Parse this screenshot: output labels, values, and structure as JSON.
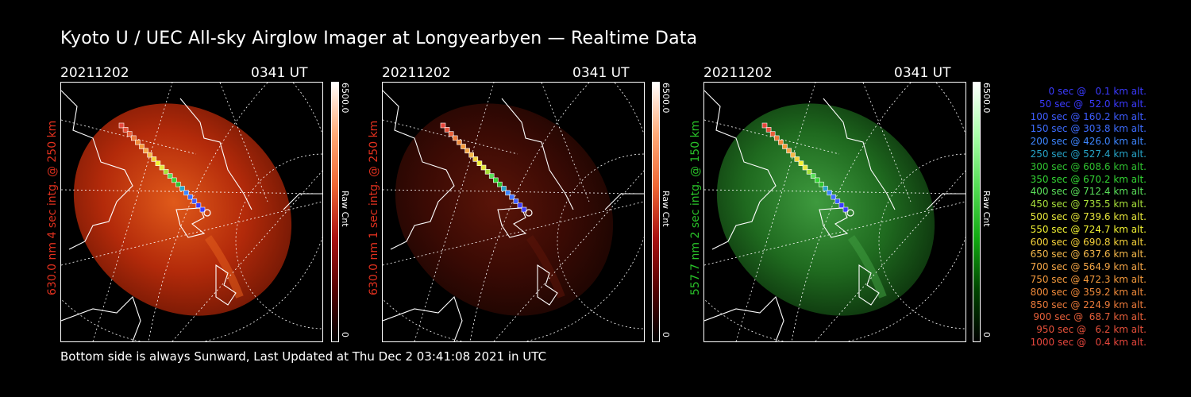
{
  "title": "Kyoto U / UEC All-sky Airglow Imager at Longyearbyen — Realtime Data",
  "footer": "Bottom side is always Sunward, Last Updated at Thu Dec  2 03:41:08 2021 in UTC",
  "panels": [
    {
      "date": "20211202",
      "time": "0341 UT",
      "ylabel": "630.0 nm  4 sec intg. @ 250 km",
      "ylabel_color": "#e0301e",
      "cbar_max": "6500.0",
      "cbar_min": "0",
      "cbar_unit": "Raw Cnt",
      "tint": "red",
      "intensity": "bright"
    },
    {
      "date": "20211202",
      "time": "0341 UT",
      "ylabel": "630.0 nm  1 sec intg. @ 250 km",
      "ylabel_color": "#e0301e",
      "cbar_max": "6500.0",
      "cbar_min": "0",
      "cbar_unit": "Raw Cnt",
      "tint": "red",
      "intensity": "dim"
    },
    {
      "date": "20211202",
      "time": "0341 UT",
      "ylabel": "557.7 nm  2 sec intg. @ 150 km",
      "ylabel_color": "#29c229",
      "cbar_max": "6500.0",
      "cbar_min": "0",
      "cbar_unit": "Raw Cnt",
      "tint": "green",
      "intensity": "medium"
    }
  ],
  "legend": [
    {
      "text": "0 sec @   0.1 km alt.",
      "color": "#3a3aff"
    },
    {
      "text": "50 sec @  52.0 km alt.",
      "color": "#3a3aff"
    },
    {
      "text": "100 sec @ 160.2 km alt.",
      "color": "#3d5cff"
    },
    {
      "text": "150 sec @ 303.8 km alt.",
      "color": "#3d6dff"
    },
    {
      "text": "200 sec @ 426.0 km alt.",
      "color": "#3d86ff"
    },
    {
      "text": "250 sec @ 527.4 km alt.",
      "color": "#26a4c8"
    },
    {
      "text": "300 sec @ 608.6 km alt.",
      "color": "#2fc12f"
    },
    {
      "text": "350 sec @ 670.2 km alt.",
      "color": "#33d633"
    },
    {
      "text": "400 sec @ 712.4 km alt.",
      "color": "#5ae05a"
    },
    {
      "text": "450 sec @ 735.5 km alt.",
      "color": "#a8e03a"
    },
    {
      "text": "500 sec @ 739.6 km alt.",
      "color": "#e6e63a"
    },
    {
      "text": "550 sec @ 724.7 km alt.",
      "color": "#f2f232"
    },
    {
      "text": "600 sec @ 690.8 km alt.",
      "color": "#f5d23a"
    },
    {
      "text": "650 sec @ 637.6 km alt.",
      "color": "#f5b84a"
    },
    {
      "text": "700 sec @ 564.9 km alt.",
      "color": "#f5a646"
    },
    {
      "text": "750 sec @ 472.3 km alt.",
      "color": "#f59a3c"
    },
    {
      "text": "800 sec @ 359.2 km alt.",
      "color": "#f08a3a"
    },
    {
      "text": "850 sec @ 224.9 km alt.",
      "color": "#ec7a3a"
    },
    {
      "text": "900 sec @  68.7 km alt.",
      "color": "#e8603a"
    },
    {
      "text": "950 sec @   6.2 km alt.",
      "color": "#e6503a"
    },
    {
      "text": "1000 sec @   0.4 km alt.",
      "color": "#e6463c"
    }
  ]
}
